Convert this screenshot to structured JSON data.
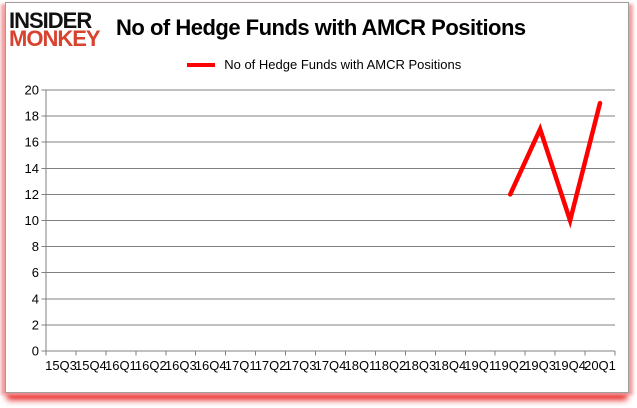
{
  "logo": {
    "line1": "INSIDER",
    "line2": "MONKEY",
    "color": "#d8432f"
  },
  "header": {
    "title": "No of Hedge Funds with AMCR Positions"
  },
  "legend": {
    "label": "No of Hedge Funds with AMCR Positions"
  },
  "chart_data": {
    "type": "line",
    "title": "No of Hedge Funds with AMCR Positions",
    "categories": [
      "15Q3",
      "15Q4",
      "16Q1",
      "16Q2",
      "16Q3",
      "16Q4",
      "17Q1",
      "17Q2",
      "17Q3",
      "17Q4",
      "18Q1",
      "18Q2",
      "18Q3",
      "18Q4",
      "19Q1",
      "19Q2",
      "19Q3",
      "19Q4",
      "20Q1"
    ],
    "series": [
      {
        "name": "No of Hedge Funds with AMCR Positions",
        "color": "#ff0000",
        "values": [
          null,
          null,
          null,
          null,
          null,
          null,
          null,
          null,
          null,
          null,
          null,
          null,
          null,
          null,
          null,
          12,
          17,
          10,
          19
        ]
      }
    ],
    "xlabel": "",
    "ylabel": "",
    "ylim": [
      0,
      20
    ],
    "ytick_step": 2,
    "grid": true,
    "legend_position": "top-center",
    "colors": {
      "gridline": "#808080",
      "axis": "#808080",
      "tick_label": "#000000"
    }
  }
}
